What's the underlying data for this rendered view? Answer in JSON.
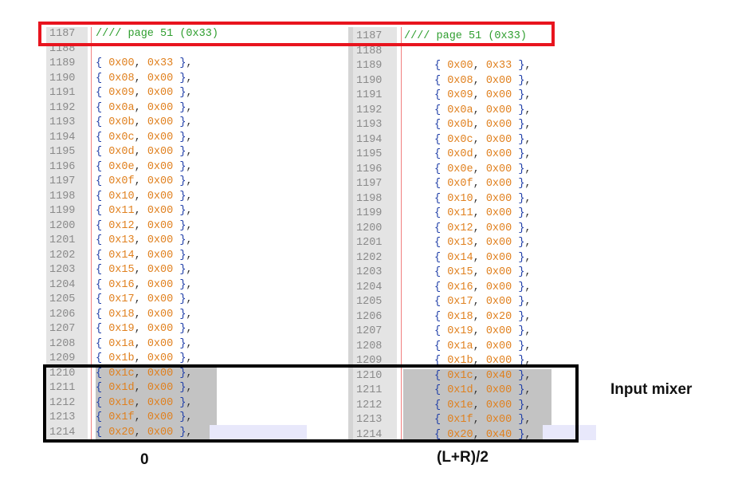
{
  "left_pane": {
    "lines": [
      {
        "n": "1187",
        "code": "//// page 51 (0x33)",
        "kind": "comment"
      },
      {
        "n": "1188",
        "code": "",
        "kind": "blank"
      },
      {
        "n": "1189",
        "a": "0x00",
        "b": "0x33"
      },
      {
        "n": "1190",
        "a": "0x08",
        "b": "0x00"
      },
      {
        "n": "1191",
        "a": "0x09",
        "b": "0x00"
      },
      {
        "n": "1192",
        "a": "0x0a",
        "b": "0x00"
      },
      {
        "n": "1193",
        "a": "0x0b",
        "b": "0x00"
      },
      {
        "n": "1194",
        "a": "0x0c",
        "b": "0x00"
      },
      {
        "n": "1195",
        "a": "0x0d",
        "b": "0x00"
      },
      {
        "n": "1196",
        "a": "0x0e",
        "b": "0x00"
      },
      {
        "n": "1197",
        "a": "0x0f",
        "b": "0x00"
      },
      {
        "n": "1198",
        "a": "0x10",
        "b": "0x00"
      },
      {
        "n": "1199",
        "a": "0x11",
        "b": "0x00"
      },
      {
        "n": "1200",
        "a": "0x12",
        "b": "0x00"
      },
      {
        "n": "1201",
        "a": "0x13",
        "b": "0x00"
      },
      {
        "n": "1202",
        "a": "0x14",
        "b": "0x00"
      },
      {
        "n": "1203",
        "a": "0x15",
        "b": "0x00"
      },
      {
        "n": "1204",
        "a": "0x16",
        "b": "0x00"
      },
      {
        "n": "1205",
        "a": "0x17",
        "b": "0x00"
      },
      {
        "n": "1206",
        "a": "0x18",
        "b": "0x00"
      },
      {
        "n": "1207",
        "a": "0x19",
        "b": "0x00"
      },
      {
        "n": "1208",
        "a": "0x1a",
        "b": "0x00"
      },
      {
        "n": "1209",
        "a": "0x1b",
        "b": "0x00"
      },
      {
        "n": "1210",
        "a": "0x1c",
        "b": "0x00",
        "sel": true
      },
      {
        "n": "1211",
        "a": "0x1d",
        "b": "0x00",
        "sel": true
      },
      {
        "n": "1212",
        "a": "0x1e",
        "b": "0x00",
        "sel": true
      },
      {
        "n": "1213",
        "a": "0x1f",
        "b": "0x00",
        "sel": true
      },
      {
        "n": "1214",
        "a": "0x20",
        "b": "0x00",
        "sel": true
      }
    ]
  },
  "right_pane": {
    "lines": [
      {
        "n": "1187",
        "code": "//// page 51 (0x33)",
        "kind": "comment"
      },
      {
        "n": "1188",
        "code": "",
        "kind": "blank"
      },
      {
        "n": "1189",
        "a": "0x00",
        "b": "0x33"
      },
      {
        "n": "1190",
        "a": "0x08",
        "b": "0x00"
      },
      {
        "n": "1191",
        "a": "0x09",
        "b": "0x00"
      },
      {
        "n": "1192",
        "a": "0x0a",
        "b": "0x00"
      },
      {
        "n": "1193",
        "a": "0x0b",
        "b": "0x00"
      },
      {
        "n": "1194",
        "a": "0x0c",
        "b": "0x00"
      },
      {
        "n": "1195",
        "a": "0x0d",
        "b": "0x00"
      },
      {
        "n": "1196",
        "a": "0x0e",
        "b": "0x00"
      },
      {
        "n": "1197",
        "a": "0x0f",
        "b": "0x00"
      },
      {
        "n": "1198",
        "a": "0x10",
        "b": "0x00"
      },
      {
        "n": "1199",
        "a": "0x11",
        "b": "0x00"
      },
      {
        "n": "1200",
        "a": "0x12",
        "b": "0x00"
      },
      {
        "n": "1201",
        "a": "0x13",
        "b": "0x00"
      },
      {
        "n": "1202",
        "a": "0x14",
        "b": "0x00"
      },
      {
        "n": "1203",
        "a": "0x15",
        "b": "0x00"
      },
      {
        "n": "1204",
        "a": "0x16",
        "b": "0x00"
      },
      {
        "n": "1205",
        "a": "0x17",
        "b": "0x00"
      },
      {
        "n": "1206",
        "a": "0x18",
        "b": "0x20"
      },
      {
        "n": "1207",
        "a": "0x19",
        "b": "0x00"
      },
      {
        "n": "1208",
        "a": "0x1a",
        "b": "0x00"
      },
      {
        "n": "1209",
        "a": "0x1b",
        "b": "0x00"
      },
      {
        "n": "1210",
        "a": "0x1c",
        "b": "0x40",
        "sel": true
      },
      {
        "n": "1211",
        "a": "0x1d",
        "b": "0x00",
        "sel": true
      },
      {
        "n": "1212",
        "a": "0x1e",
        "b": "0x00",
        "sel": true
      },
      {
        "n": "1213",
        "a": "0x1f",
        "b": "0x00",
        "sel": true
      },
      {
        "n": "1214",
        "a": "0x20",
        "b": "0x40",
        "sel": true
      }
    ]
  },
  "annotations": {
    "left_label": "0",
    "right_label": "(L+R)/2",
    "side_label": "Input mixer"
  },
  "colors": {
    "red_box": "#e8141e",
    "black_box": "#000000",
    "comment": "#2e9e2e",
    "brace": "#1f3ea8",
    "hex": "#e0801e",
    "selection": "#c3c3c3"
  }
}
